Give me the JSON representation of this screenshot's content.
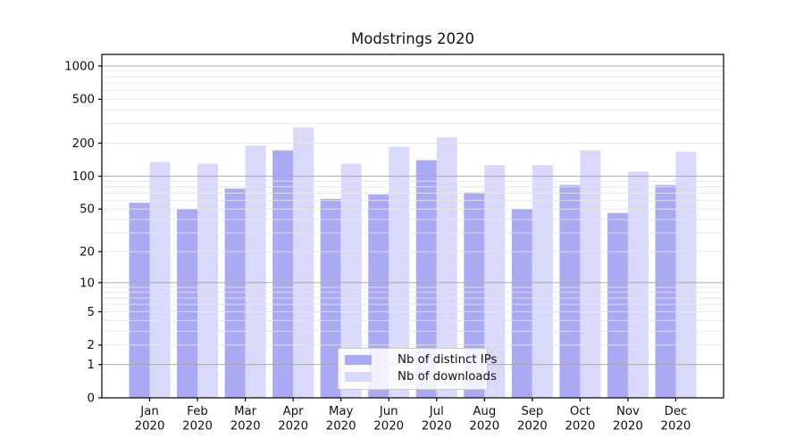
{
  "title": "Modstrings 2020",
  "colors": {
    "series_distinct_ips": "#a9a9f4",
    "series_downloads": "#d9d9fb",
    "grid_major": "#ababab",
    "grid_minor": "#e5e5e5",
    "axis": "#000000",
    "text": "#111111"
  },
  "chart_data": {
    "type": "bar",
    "title": "Modstrings 2020",
    "categories": [
      "Jan",
      "Feb",
      "Mar",
      "Apr",
      "May",
      "Jun",
      "Jul",
      "Aug",
      "Sep",
      "Oct",
      "Nov",
      "Dec"
    ],
    "year_label": "2020",
    "series": [
      {
        "name": "Nb of distinct IPs",
        "color": "#a9a9f4",
        "values": [
          57,
          50,
          77,
          172,
          62,
          68,
          140,
          71,
          50,
          83,
          46,
          83
        ]
      },
      {
        "name": "Nb of downloads",
        "color": "#d9d9fb",
        "values": [
          135,
          130,
          190,
          278,
          130,
          185,
          226,
          126,
          126,
          172,
          110,
          167
        ]
      }
    ],
    "y_scale": "log1p",
    "y_ticks": [
      0,
      1,
      2,
      5,
      10,
      20,
      50,
      100,
      200,
      500,
      1000
    ],
    "ylim": [
      0,
      1290
    ],
    "grid": "on",
    "grid_on_top_of_bars": true,
    "legend_position": "lower-center"
  }
}
